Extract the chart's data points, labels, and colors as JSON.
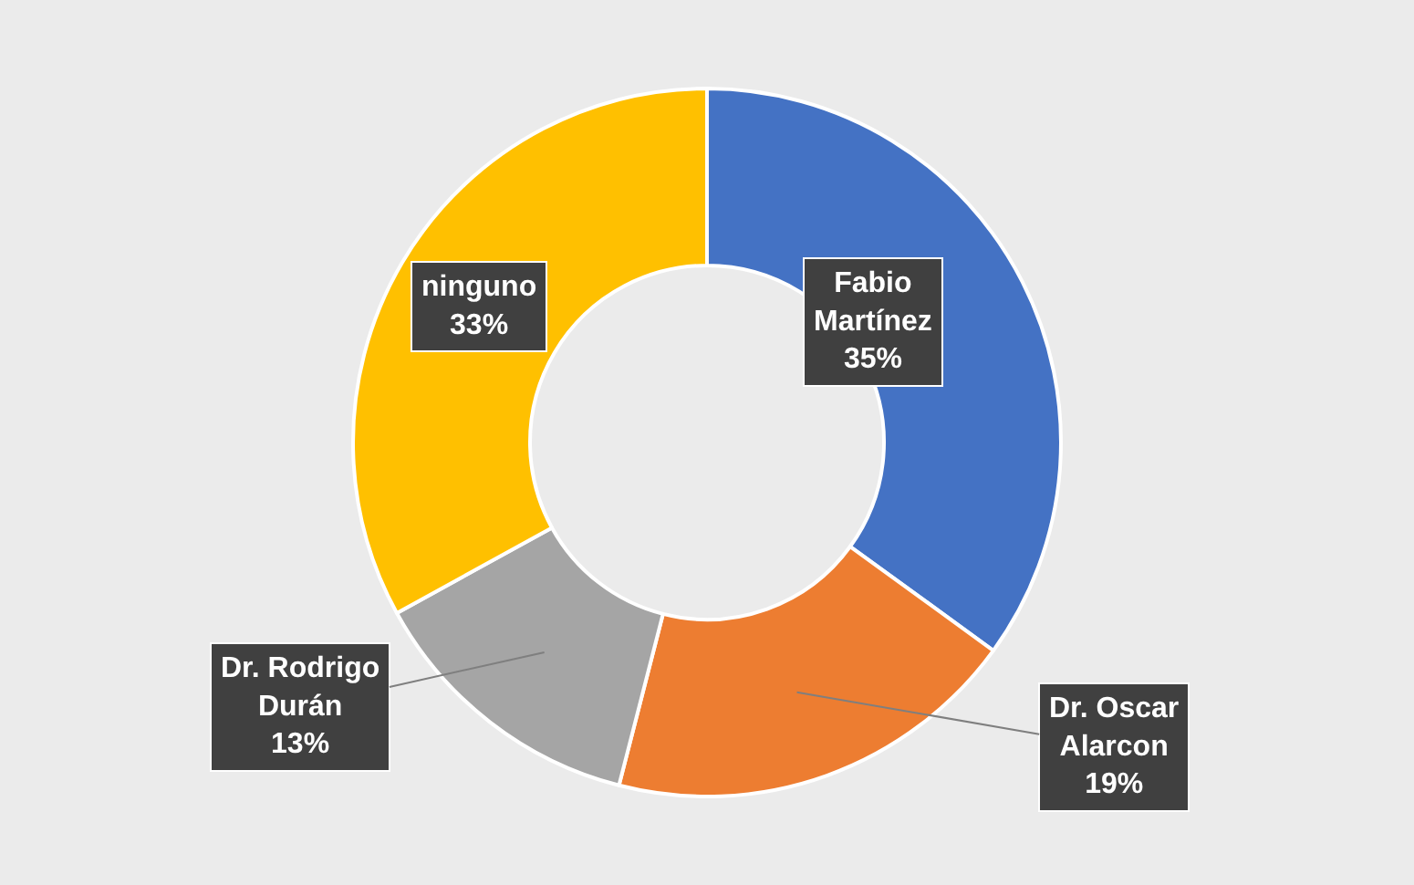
{
  "chart_data": {
    "type": "donut",
    "categories": [
      "Fabio Martínez",
      "Dr. Oscar Alarcon",
      "Dr. Rodrigo Durán",
      "ninguno"
    ],
    "values": [
      35,
      19,
      13,
      33
    ],
    "colors": [
      "#4472c4",
      "#ed7d31",
      "#a5a5a5",
      "#ffc000"
    ],
    "value_labels": [
      "35%",
      "19%",
      "13%",
      "33%"
    ],
    "legend": false
  }
}
